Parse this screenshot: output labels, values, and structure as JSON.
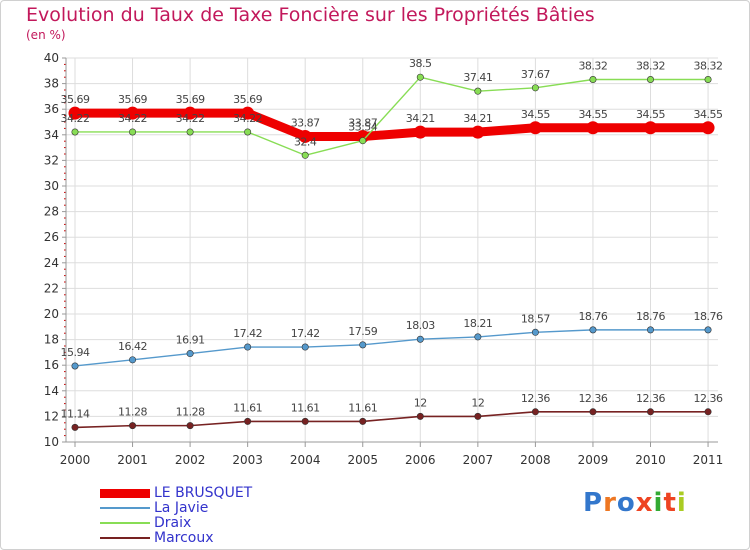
{
  "title": "Evolution du Taux de Taxe Foncière sur les Propriétés Bâties",
  "subtitle": "(en %)",
  "logo": "Proxiti",
  "chart_data": {
    "type": "line",
    "x": [
      "2000",
      "2001",
      "2002",
      "2003",
      "2004",
      "2005",
      "2006",
      "2007",
      "2008",
      "2009",
      "2010",
      "2011"
    ],
    "ylim": [
      10,
      40
    ],
    "yticks": [
      10,
      12,
      14,
      16,
      18,
      20,
      22,
      24,
      26,
      28,
      30,
      32,
      34,
      36,
      38,
      40
    ],
    "grid": true,
    "legend_position": "bottom-left",
    "series": [
      {
        "name": "LE BRUSQUET",
        "color": "#ee0000",
        "values": [
          35.69,
          35.69,
          35.69,
          35.69,
          33.87,
          33.87,
          34.21,
          34.21,
          34.55,
          34.55,
          34.55,
          34.55
        ],
        "labels": [
          "35.69",
          "35.69",
          "35.69",
          "35.69",
          "33.87",
          "33.87",
          "34.21",
          "34.21",
          "34.55",
          "34.55",
          "34.55",
          "34.55"
        ]
      },
      {
        "name": "La Javie",
        "color": "#5599cc",
        "values": [
          15.94,
          16.42,
          16.91,
          17.42,
          17.42,
          17.59,
          18.03,
          18.21,
          18.57,
          18.76,
          18.76,
          18.76
        ],
        "labels": [
          "15.94",
          "16.42",
          "16.91",
          "17.42",
          "17.42",
          "17.59",
          "18.03",
          "18.21",
          "18.57",
          "18.76",
          "18.76",
          "18.76"
        ]
      },
      {
        "name": "Draix",
        "color": "#88dd55",
        "values": [
          34.22,
          34.22,
          34.22,
          34.22,
          32.4,
          33.54,
          38.5,
          37.41,
          37.67,
          38.32,
          38.32,
          38.32
        ],
        "labels": [
          "34.22",
          "34.22",
          "34.22",
          "34.22",
          "32.4",
          "33.54",
          "38.5",
          "37.41",
          "37.67",
          "38.32",
          "38.32",
          "38.32"
        ]
      },
      {
        "name": "Marcoux",
        "color": "#772222",
        "values": [
          11.14,
          11.28,
          11.28,
          11.61,
          11.61,
          11.61,
          12,
          12,
          12.36,
          12.36,
          12.36,
          12.36
        ],
        "labels": [
          "11.14",
          "11.28",
          "11.28",
          "11.61",
          "11.61",
          "11.61",
          "12",
          "12",
          "12.36",
          "12.36",
          "12.36",
          "12.36"
        ]
      }
    ]
  }
}
